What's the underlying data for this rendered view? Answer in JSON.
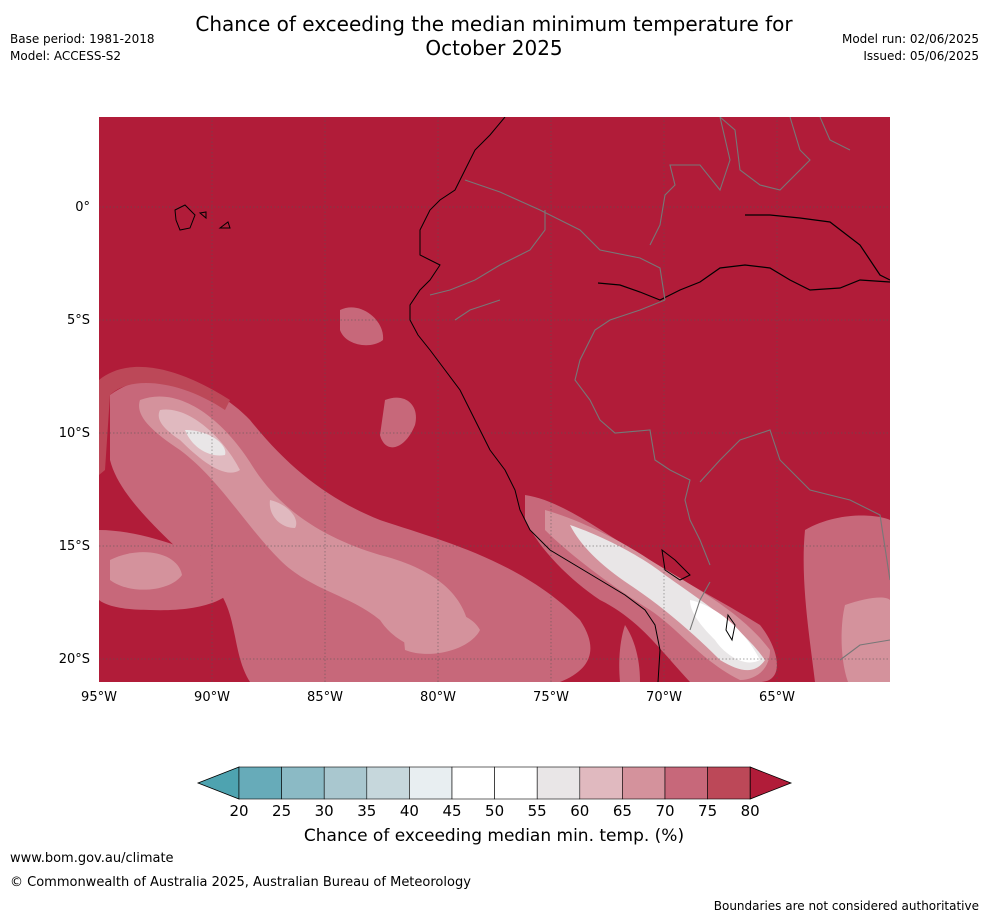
{
  "header": {
    "title_line1": "Chance of exceeding the median minimum temperature for",
    "title_line2": "October 2025",
    "base_period": "Base period: 1981-2018",
    "model": "Model: ACCESS-S2",
    "model_run": "Model run: 02/06/2025",
    "issued": "Issued: 05/06/2025"
  },
  "map": {
    "background_color": "#b11c39",
    "lat_labels": [
      "0°",
      "5°S",
      "10°S",
      "15°S",
      "20°S"
    ],
    "lon_labels": [
      "95°W",
      "90°W",
      "85°W",
      "80°W",
      "75°W",
      "70°W",
      "65°W"
    ]
  },
  "colorbar": {
    "title": "Chance of exceeding median min. temp. (%)",
    "ticks": [
      "20",
      "25",
      "30",
      "35",
      "40",
      "45",
      "50",
      "55",
      "60",
      "65",
      "70",
      "75",
      "80"
    ],
    "colors": [
      "#67abb9",
      "#8bbac5",
      "#a9c7cf",
      "#c6d7dc",
      "#e8eef1",
      "#ffffff",
      "#ffffff",
      "#e9e6e7",
      "#e0b9bf",
      "#d4929c",
      "#c7687a",
      "#bc4858"
    ],
    "under_color": "#4ea3b0",
    "over_color": "#b11c39"
  },
  "footer": {
    "url": "www.bom.gov.au/climate",
    "copyright": "© Commonwealth of Australia 2025, Australian Bureau of Meteorology",
    "note": "Boundaries are not considered authoritative"
  }
}
